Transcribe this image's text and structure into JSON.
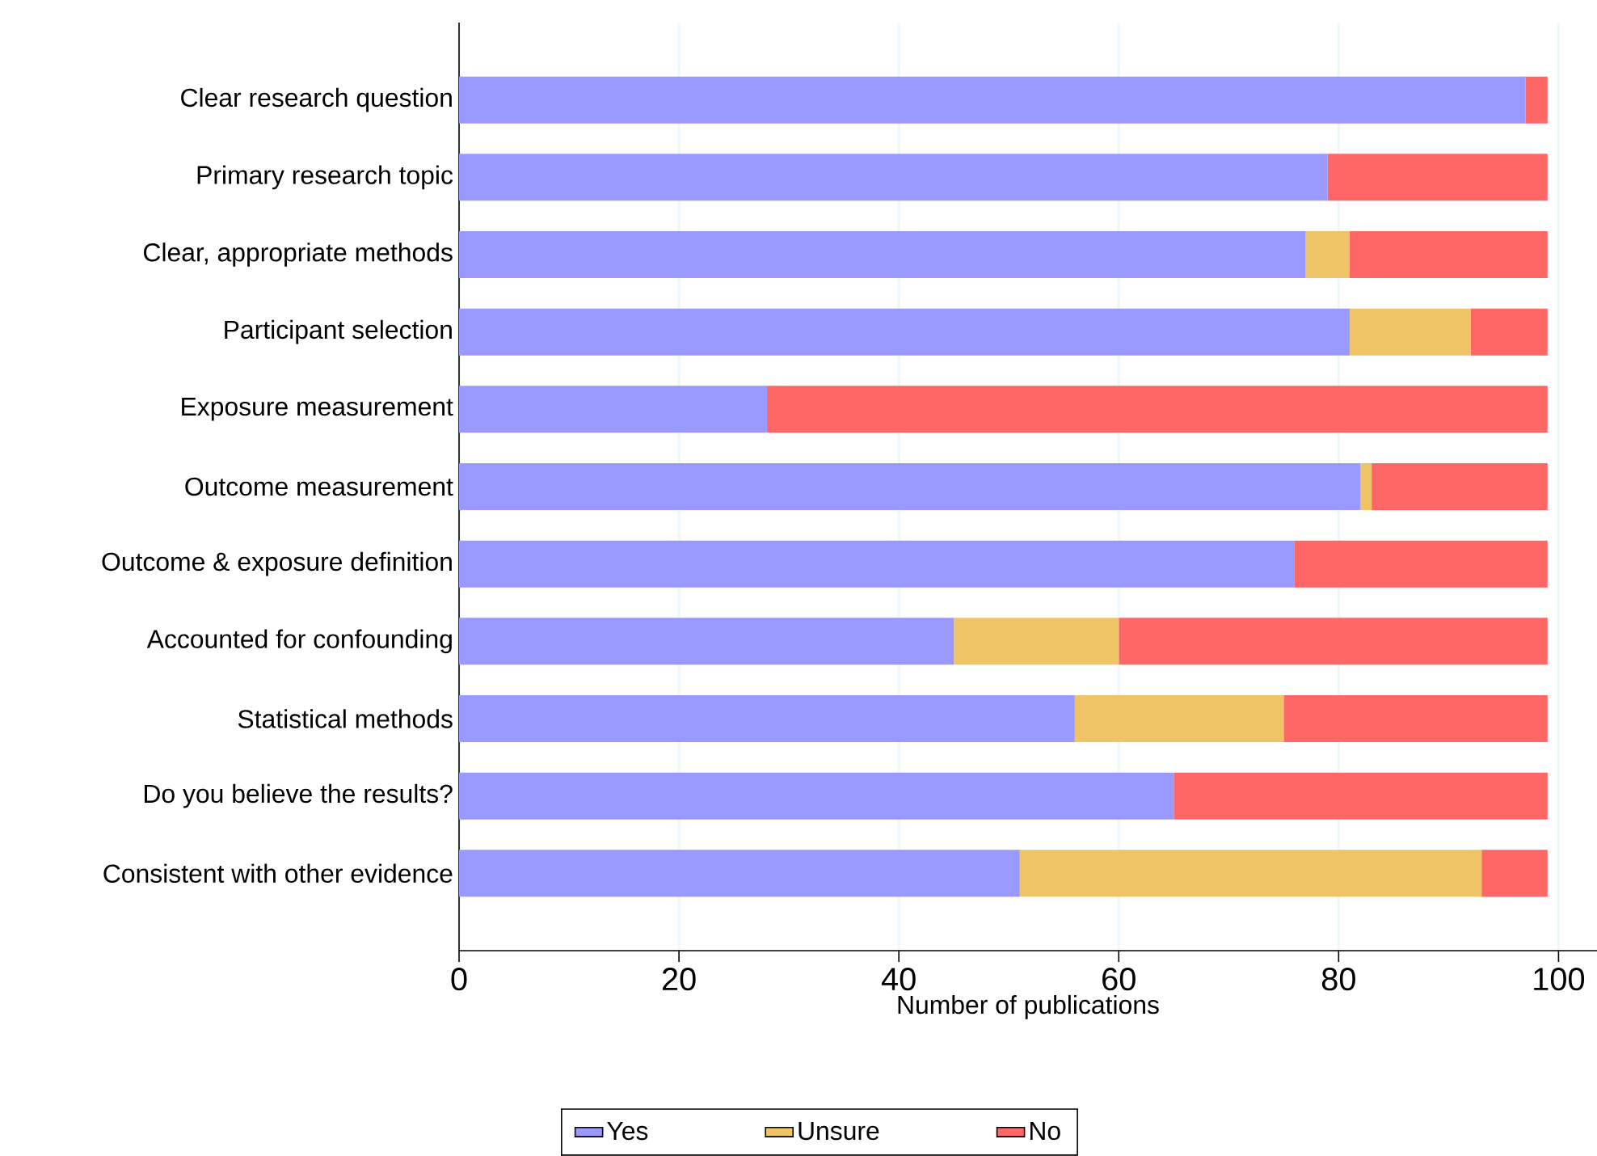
{
  "chart_data": {
    "type": "bar",
    "orientation": "horizontal",
    "stacked": true,
    "xlabel": "Number of publications",
    "categories": [
      "Clear research question",
      "Primary research topic",
      "Clear, appropriate methods",
      "Participant selection",
      "Exposure measurement",
      "Outcome measurement",
      "Outcome & exposure definition",
      "Accounted for confounding",
      "Statistical methods",
      "Do you believe the results?",
      "Consistent with other evidence"
    ],
    "series": [
      {
        "name": "Yes",
        "color": "#9999ff",
        "values": [
          97,
          79,
          77,
          81,
          28,
          82,
          76,
          45,
          56,
          65,
          51
        ]
      },
      {
        "name": "Unsure",
        "color": "#eec466",
        "values": [
          0,
          0,
          4,
          11,
          0,
          1,
          0,
          15,
          19,
          0,
          42
        ]
      },
      {
        "name": "No",
        "color": "#ff6666",
        "values": [
          2,
          20,
          18,
          7,
          71,
          16,
          23,
          39,
          24,
          34,
          6
        ]
      }
    ],
    "xlim": [
      0,
      103.5
    ],
    "xticks": [
      0,
      20,
      40,
      60,
      80,
      100
    ],
    "grid": "x",
    "legend": "bottom"
  }
}
